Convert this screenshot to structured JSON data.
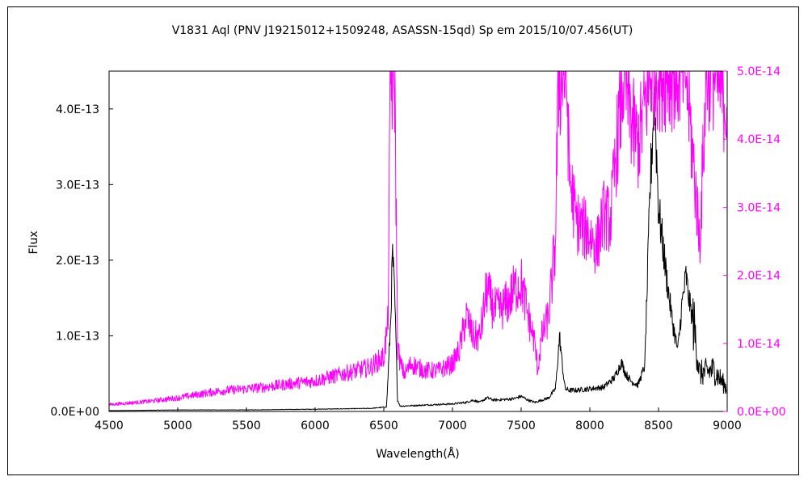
{
  "chart_data": {
    "type": "line",
    "title": "V1831 Aql (PNV J19215012+1509248, ASASSN-15qd)    Sp em    2015/10/07.456(UT)",
    "xlabel": "Wavelength(Å)",
    "ylabel": "Flux",
    "xlim": [
      4500,
      9000
    ],
    "ylim_left": [
      0,
      4.5e-13
    ],
    "ylim_right": [
      0,
      5e-14
    ],
    "x_ticks": [
      "4500",
      "5000",
      "5500",
      "6000",
      "6500",
      "7000",
      "7500",
      "8000",
      "8500",
      "9000"
    ],
    "y_ticks_left": [
      "0.0E+00",
      "1.0E-13",
      "2.0E-13",
      "3.0E-13",
      "4.0E-13"
    ],
    "y_ticks_right": [
      "0.0E+00",
      "1.0E-14",
      "2.0E-14",
      "3.0E-14",
      "4.0E-14",
      "5.0E-14"
    ],
    "grid": false,
    "series": [
      {
        "axis": "left",
        "color": "#000000",
        "x": [
          4500,
          5000,
          5500,
          6000,
          6400,
          6520,
          6550,
          6563,
          6580,
          6600,
          6620,
          7000,
          7100,
          7150,
          7200,
          7250,
          7300,
          7400,
          7450,
          7500,
          7550,
          7600,
          7700,
          7750,
          7780,
          7800,
          7820,
          7850,
          7900,
          8000,
          8100,
          8180,
          8230,
          8260,
          8300,
          8350,
          8400,
          8440,
          8470,
          8500,
          8550,
          8600,
          8640,
          8670,
          8700,
          8720,
          8760,
          8800,
          8900,
          9000
        ],
        "y": [
          1e-15,
          2e-15,
          2e-15,
          3e-15,
          4e-15,
          6e-15,
          1.2e-13,
          2.1e-13,
          1.5e-13,
          1.5e-14,
          7e-15,
          1e-14,
          1.2e-14,
          1.5e-14,
          1.2e-14,
          1.8e-14,
          1.5e-14,
          1.6e-14,
          1.7e-14,
          2e-14,
          1.5e-14,
          1.2e-14,
          1.8e-14,
          3e-14,
          1e-13,
          6e-14,
          3e-14,
          2.8e-14,
          2.8e-14,
          3e-14,
          3.2e-14,
          4.5e-14,
          6.5e-14,
          5e-14,
          4e-14,
          3.5e-14,
          6e-14,
          3e-13,
          4.2e-13,
          2.7e-13,
          1.9e-13,
          1.2e-13,
          8e-14,
          1.4e-13,
          1.8e-13,
          1.5e-13,
          1.1e-13,
          5e-14,
          5.5e-14,
          3e-14
        ]
      },
      {
        "axis": "right",
        "color": "#ff00ff",
        "x": [
          4500,
          4800,
          5000,
          5300,
          5600,
          5800,
          6000,
          6200,
          6400,
          6500,
          6530,
          6550,
          6563,
          6580,
          6600,
          6620,
          6650,
          6700,
          6800,
          6900,
          7000,
          7050,
          7100,
          7150,
          7200,
          7250,
          7300,
          7350,
          7400,
          7450,
          7500,
          7550,
          7600,
          7620,
          7650,
          7700,
          7750,
          7770,
          7790,
          7810,
          7830,
          7850,
          7900,
          8000,
          8050,
          8100,
          8150,
          8200,
          8250,
          8300,
          8350,
          8400,
          8450,
          8500,
          8600,
          8700,
          8800,
          8850,
          8900,
          9000
        ],
        "y": [
          1e-15,
          1.5e-15,
          2e-15,
          3e-15,
          3.5e-15,
          4e-15,
          4.5e-15,
          5.5e-15,
          6.5e-15,
          8e-15,
          1.3e-14,
          5e-14,
          5e-14,
          5e-14,
          1e-14,
          7e-15,
          5.5e-15,
          7e-15,
          6e-15,
          6e-15,
          7e-15,
          9e-15,
          1.4e-14,
          1.1e-14,
          1.1e-14,
          1.8e-14,
          1.5e-14,
          1.5e-14,
          1.6e-14,
          1.8e-14,
          1.9e-14,
          1.4e-14,
          1e-14,
          6e-15,
          1.1e-14,
          1.4e-14,
          2.5e-14,
          5e-14,
          5e-14,
          5e-14,
          5e-14,
          3.5e-14,
          2.8e-14,
          2.6e-14,
          2.4e-14,
          2.9e-14,
          2.8e-14,
          4e-14,
          5e-14,
          4.3e-14,
          3.9e-14,
          4.5e-14,
          5e-14,
          5e-14,
          5e-14,
          5e-14,
          2.5e-14,
          5e-14,
          5e-14,
          4.5e-14
        ]
      }
    ]
  }
}
